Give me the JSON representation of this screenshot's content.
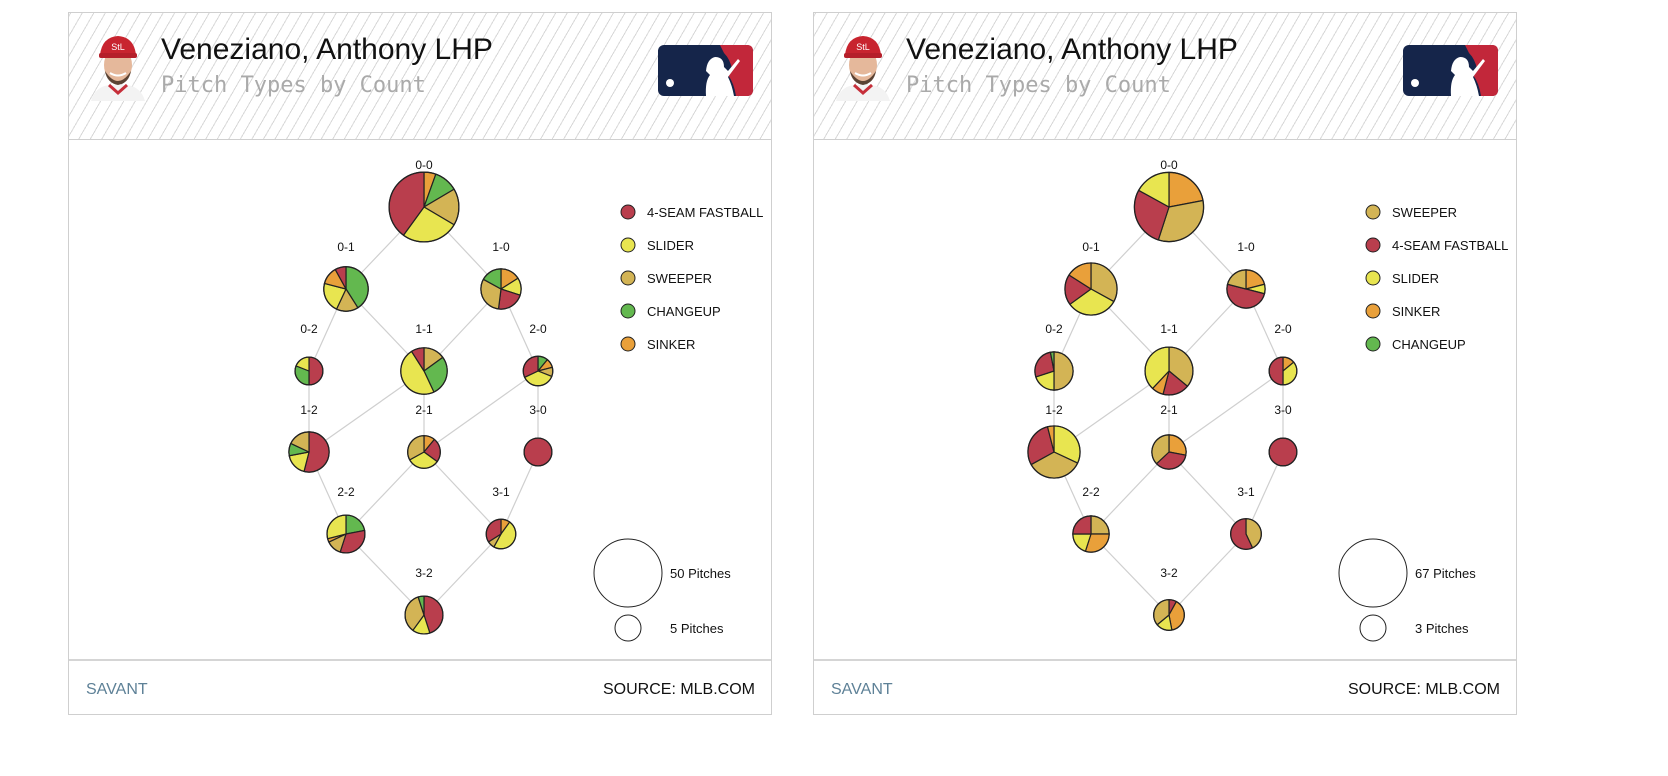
{
  "colors": {
    "FF": "#b93e4d",
    "SL": "#e8e550",
    "SW": "#d3b455",
    "CH": "#63b84f",
    "SI": "#e9a03a"
  },
  "panels": [
    {
      "title": "Veneziano, Anthony LHP",
      "subtitle": "Pitch Types by Count",
      "footer": {
        "left": "SAVANT",
        "right": "SOURCE: MLB.COM"
      },
      "chart_data": {
        "type": "pie",
        "title": "Pitch Types by Count",
        "legend": [
          {
            "key": "FF",
            "label": "4-SEAM FASTBALL"
          },
          {
            "key": "SL",
            "label": "SLIDER"
          },
          {
            "key": "SW",
            "label": "SWEEPER"
          },
          {
            "key": "CH",
            "label": "CHANGEUP"
          },
          {
            "key": "SI",
            "label": "SINKER"
          }
        ],
        "size_legend": [
          {
            "pitches": 50,
            "label": "50 Pitches"
          },
          {
            "pitches": 5,
            "label": "5 Pitches"
          }
        ],
        "nodes": [
          {
            "count": "0-0",
            "pitches": 53,
            "slices": [
              {
                "type": "SI",
                "pct": 5.5
              },
              {
                "type": "CH",
                "pct": 11
              },
              {
                "type": "SW",
                "pct": 17
              },
              {
                "type": "SL",
                "pct": 26.5
              },
              {
                "type": "FF",
                "pct": 40
              }
            ]
          },
          {
            "count": "0-1",
            "pitches": 19,
            "slices": [
              {
                "type": "CH",
                "pct": 41
              },
              {
                "type": "SW",
                "pct": 16
              },
              {
                "type": "SL",
                "pct": 22
              },
              {
                "type": "SI",
                "pct": 13
              },
              {
                "type": "FF",
                "pct": 8
              }
            ]
          },
          {
            "count": "1-0",
            "pitches": 15,
            "slices": [
              {
                "type": "SI",
                "pct": 16
              },
              {
                "type": "SL",
                "pct": 14
              },
              {
                "type": "FF",
                "pct": 22
              },
              {
                "type": "SW",
                "pct": 31
              },
              {
                "type": "CH",
                "pct": 17
              }
            ]
          },
          {
            "count": "0-2",
            "pitches": 6,
            "slices": [
              {
                "type": "FF",
                "pct": 50
              },
              {
                "type": "CH",
                "pct": 31
              },
              {
                "type": "SL",
                "pct": 19
              }
            ]
          },
          {
            "count": "1-1",
            "pitches": 21,
            "slices": [
              {
                "type": "SW",
                "pct": 15
              },
              {
                "type": "CH",
                "pct": 28
              },
              {
                "type": "SL",
                "pct": 48
              },
              {
                "type": "FF",
                "pct": 9
              }
            ]
          },
          {
            "count": "2-0",
            "pitches": 7,
            "slices": [
              {
                "type": "CH",
                "pct": 11
              },
              {
                "type": "SI",
                "pct": 10
              },
              {
                "type": "SW",
                "pct": 10
              },
              {
                "type": "SL",
                "pct": 37
              },
              {
                "type": "FF",
                "pct": 32
              }
            ]
          },
          {
            "count": "1-2",
            "pitches": 15,
            "slices": [
              {
                "type": "FF",
                "pct": 54
              },
              {
                "type": "SL",
                "pct": 18
              },
              {
                "type": "CH",
                "pct": 10
              },
              {
                "type": "SW",
                "pct": 18
              }
            ]
          },
          {
            "count": "2-1",
            "pitches": 9,
            "slices": [
              {
                "type": "SI",
                "pct": 11
              },
              {
                "type": "FF",
                "pct": 24
              },
              {
                "type": "SL",
                "pct": 32
              },
              {
                "type": "SW",
                "pct": 33
              }
            ]
          },
          {
            "count": "3-0",
            "pitches": 6,
            "slices": [
              {
                "type": "FF",
                "pct": 100
              }
            ]
          },
          {
            "count": "2-2",
            "pitches": 13,
            "slices": [
              {
                "type": "CH",
                "pct": 22
              },
              {
                "type": "FF",
                "pct": 33
              },
              {
                "type": "SW",
                "pct": 13
              },
              {
                "type": "SI",
                "pct": 3
              },
              {
                "type": "SL",
                "pct": 29
              }
            ]
          },
          {
            "count": "3-1",
            "pitches": 7,
            "slices": [
              {
                "type": "SI",
                "pct": 10
              },
              {
                "type": "SL",
                "pct": 48
              },
              {
                "type": "SW",
                "pct": 8
              },
              {
                "type": "FF",
                "pct": 34
              }
            ]
          },
          {
            "count": "3-2",
            "pitches": 13,
            "slices": [
              {
                "type": "FF",
                "pct": 45
              },
              {
                "type": "SL",
                "pct": 15
              },
              {
                "type": "SW",
                "pct": 35
              },
              {
                "type": "CH",
                "pct": 5
              }
            ]
          }
        ]
      }
    },
    {
      "title": "Veneziano, Anthony LHP",
      "subtitle": "Pitch Types by Count",
      "footer": {
        "left": "SAVANT",
        "right": "SOURCE: MLB.COM"
      },
      "chart_data": {
        "type": "pie",
        "title": "Pitch Types by Count",
        "legend": [
          {
            "key": "SW",
            "label": "SWEEPER"
          },
          {
            "key": "FF",
            "label": "4-SEAM FASTBALL"
          },
          {
            "key": "SL",
            "label": "SLIDER"
          },
          {
            "key": "SI",
            "label": "SINKER"
          },
          {
            "key": "CH",
            "label": "CHANGEUP"
          }
        ],
        "size_legend": [
          {
            "pitches": 67,
            "label": "67 Pitches"
          },
          {
            "pitches": 3,
            "label": "3 Pitches"
          }
        ],
        "nodes": [
          {
            "count": "0-0",
            "pitches": 70,
            "slices": [
              {
                "type": "SI",
                "pct": 22
              },
              {
                "type": "SW",
                "pct": 33
              },
              {
                "type": "FF",
                "pct": 28
              },
              {
                "type": "SL",
                "pct": 17
              }
            ]
          },
          {
            "count": "0-1",
            "pitches": 33,
            "slices": [
              {
                "type": "SW",
                "pct": 33
              },
              {
                "type": "SL",
                "pct": 32
              },
              {
                "type": "FF",
                "pct": 19
              },
              {
                "type": "SI",
                "pct": 16
              }
            ]
          },
          {
            "count": "1-0",
            "pitches": 13,
            "slices": [
              {
                "type": "SI",
                "pct": 21
              },
              {
                "type": "SL",
                "pct": 8
              },
              {
                "type": "FF",
                "pct": 50
              },
              {
                "type": "SW",
                "pct": 21
              }
            ]
          },
          {
            "count": "0-2",
            "pitches": 13,
            "slices": [
              {
                "type": "SW",
                "pct": 50
              },
              {
                "type": "SL",
                "pct": 20
              },
              {
                "type": "FF",
                "pct": 27
              },
              {
                "type": "CH",
                "pct": 3
              }
            ]
          },
          {
            "count": "1-1",
            "pitches": 26,
            "slices": [
              {
                "type": "SW",
                "pct": 36
              },
              {
                "type": "FF",
                "pct": 18
              },
              {
                "type": "SI",
                "pct": 8
              },
              {
                "type": "SL",
                "pct": 38
              }
            ]
          },
          {
            "count": "2-0",
            "pitches": 4,
            "slices": [
              {
                "type": "SI",
                "pct": 14
              },
              {
                "type": "SL",
                "pct": 36
              },
              {
                "type": "FF",
                "pct": 50
              }
            ]
          },
          {
            "count": "1-2",
            "pitches": 33,
            "slices": [
              {
                "type": "SL",
                "pct": 32
              },
              {
                "type": "SW",
                "pct": 35
              },
              {
                "type": "FF",
                "pct": 29
              },
              {
                "type": "SI",
                "pct": 4
              }
            ]
          },
          {
            "count": "2-1",
            "pitches": 9,
            "slices": [
              {
                "type": "SI",
                "pct": 28
              },
              {
                "type": "FF",
                "pct": 35
              },
              {
                "type": "SW",
                "pct": 37
              }
            ]
          },
          {
            "count": "3-0",
            "pitches": 4,
            "slices": [
              {
                "type": "FF",
                "pct": 100
              }
            ]
          },
          {
            "count": "2-2",
            "pitches": 11,
            "slices": [
              {
                "type": "SW",
                "pct": 25
              },
              {
                "type": "SI",
                "pct": 30
              },
              {
                "type": "SL",
                "pct": 20
              },
              {
                "type": "FF",
                "pct": 25
              }
            ]
          },
          {
            "count": "3-1",
            "pitches": 6,
            "slices": [
              {
                "type": "SW",
                "pct": 43
              },
              {
                "type": "FF",
                "pct": 57
              }
            ]
          },
          {
            "count": "3-2",
            "pitches": 6,
            "slices": [
              {
                "type": "FF",
                "pct": 8
              },
              {
                "type": "SI",
                "pct": 39
              },
              {
                "type": "SL",
                "pct": 17
              },
              {
                "type": "SW",
                "pct": 36
              }
            ]
          }
        ]
      }
    }
  ]
}
